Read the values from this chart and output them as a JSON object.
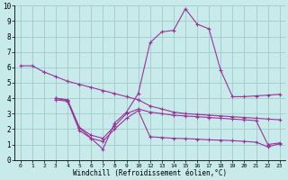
{
  "xlabel": "Windchill (Refroidissement éolien,°C)",
  "background_color": "#c8eaea",
  "grid_color": "#a0cccc",
  "line_color": "#993399",
  "x_labels": [
    "0",
    "1",
    "2",
    "3",
    "4",
    "5",
    "6",
    "7",
    "8",
    "9",
    "10",
    "12",
    "13",
    "14",
    "15",
    "16",
    "17",
    "18",
    "19",
    "20",
    "21",
    "22",
    "23"
  ],
  "ylim": [
    0,
    10
  ],
  "line1_xi": [
    0,
    1,
    2,
    3,
    4,
    5,
    6,
    7,
    8,
    9,
    10,
    11,
    12,
    13,
    14,
    15,
    16,
    17,
    18,
    19,
    20,
    21,
    22
  ],
  "line1_y": [
    6.1,
    6.1,
    5.7,
    5.4,
    5.1,
    4.9,
    4.7,
    4.5,
    4.3,
    4.1,
    3.9,
    3.5,
    3.3,
    3.1,
    3.0,
    2.95,
    2.9,
    2.85,
    2.8,
    2.75,
    2.7,
    2.65,
    2.6
  ],
  "line2_xi": [
    3,
    4,
    5,
    6,
    7,
    8,
    9,
    10,
    11,
    12,
    13,
    14,
    15,
    16,
    17,
    18,
    19,
    20,
    21,
    22
  ],
  "line2_y": [
    4.0,
    3.9,
    2.1,
    1.4,
    0.7,
    2.4,
    3.1,
    4.3,
    7.6,
    8.3,
    8.4,
    9.8,
    8.8,
    8.5,
    5.8,
    4.1,
    4.1,
    4.15,
    4.2,
    4.25
  ],
  "line3_xi": [
    3,
    4,
    5,
    6,
    7,
    8,
    9,
    10,
    11,
    12,
    13,
    14,
    15,
    16,
    17,
    18,
    19,
    20,
    21,
    22
  ],
  "line3_y": [
    4.0,
    3.85,
    2.1,
    1.6,
    1.4,
    2.2,
    3.0,
    3.3,
    3.1,
    3.0,
    2.9,
    2.85,
    2.8,
    2.75,
    2.7,
    2.65,
    2.6,
    2.55,
    1.0,
    1.1
  ],
  "line4_xi": [
    3,
    4,
    5,
    6,
    7,
    8,
    9,
    10,
    11,
    12,
    13,
    14,
    15,
    16,
    17,
    18,
    19,
    20,
    21,
    22
  ],
  "line4_y": [
    3.9,
    3.8,
    1.9,
    1.4,
    1.2,
    2.0,
    2.7,
    3.2,
    1.5,
    1.45,
    1.4,
    1.38,
    1.35,
    1.3,
    1.28,
    1.25,
    1.2,
    1.15,
    0.85,
    1.05
  ]
}
